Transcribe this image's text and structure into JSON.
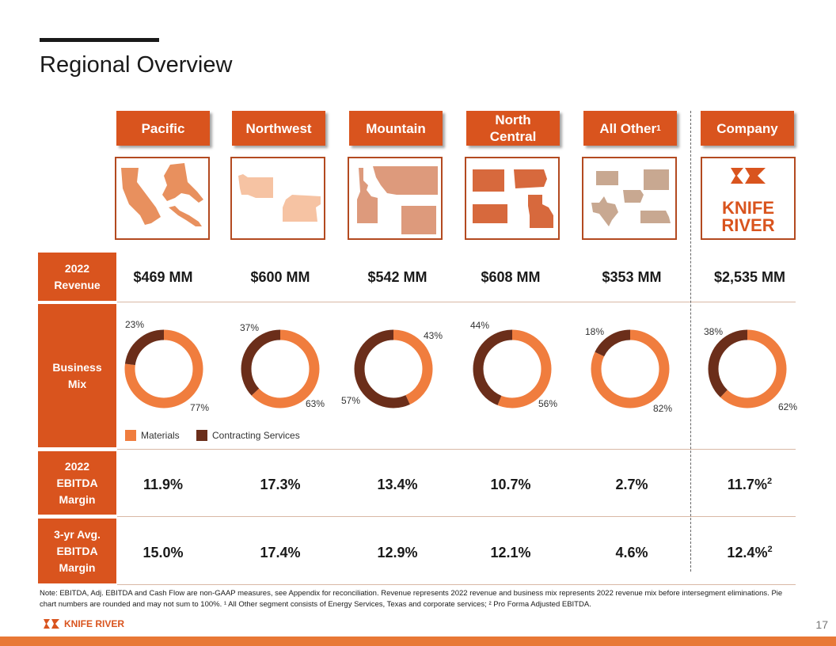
{
  "page": {
    "title": "Regional Overview",
    "page_number": "17"
  },
  "colors": {
    "header_orange": "#d9541e",
    "materials": "#f07d3e",
    "contracting_services": "#6b2e1a"
  },
  "segments": [
    {
      "name": "Pacific",
      "sup": "",
      "revenue": "$469 MM",
      "ebitda_margin": "11.9%",
      "ebitda_sup": "",
      "avg_margin": "15.0%",
      "avg_sup": "",
      "map_color": "#e8905e"
    },
    {
      "name": "Northwest",
      "sup": "",
      "revenue": "$600 MM",
      "ebitda_margin": "17.3%",
      "ebitda_sup": "",
      "avg_margin": "17.4%",
      "avg_sup": "",
      "map_color": "#f6c3a3"
    },
    {
      "name": "Mountain",
      "sup": "",
      "revenue": "$542 MM",
      "ebitda_margin": "13.4%",
      "ebitda_sup": "",
      "avg_margin": "12.9%",
      "avg_sup": "",
      "map_color": "#dd9a7c"
    },
    {
      "name": "North Central",
      "sup": "",
      "revenue": "$608 MM",
      "ebitda_margin": "10.7%",
      "ebitda_sup": "",
      "avg_margin": "12.1%",
      "avg_sup": "",
      "map_color": "#d7693d"
    },
    {
      "name": "All Other",
      "sup": "1",
      "revenue": "$353 MM",
      "ebitda_margin": "2.7%",
      "ebitda_sup": "",
      "avg_margin": "4.6%",
      "avg_sup": "",
      "map_color": "#c8a891"
    },
    {
      "name": "Company",
      "sup": "",
      "revenue": "$2,535 MM",
      "ebitda_margin": "11.7%",
      "ebitda_sup": "2",
      "avg_margin": "12.4%",
      "avg_sup": "2",
      "map_color": ""
    }
  ],
  "row_labels": {
    "revenue": "2022 Revenue",
    "business_mix": "Business Mix",
    "ebitda": "2022 EBITDA Margin",
    "avg_ebitda": "3-yr Avg. EBITDA Margin"
  },
  "chart_data": {
    "type": "pie",
    "variant": "donut",
    "categories": [
      "Pacific",
      "Northwest",
      "Mountain",
      "North Central",
      "All Other",
      "Company"
    ],
    "series": [
      {
        "name": "Materials",
        "values": [
          77,
          63,
          43,
          56,
          82,
          62
        ]
      },
      {
        "name": "Contracting Services",
        "values": [
          23,
          37,
          57,
          44,
          18,
          38
        ]
      }
    ],
    "value_labels": [
      [
        "77%",
        "23%"
      ],
      [
        "63%",
        "37%"
      ],
      [
        "43%",
        "57%"
      ],
      [
        "56%",
        "44%"
      ],
      [
        "82%",
        "18%"
      ],
      [
        "62%",
        "38%"
      ]
    ],
    "legend": [
      "Materials",
      "Contracting Services"
    ],
    "legend_placement": "bottom-left",
    "unit": "%"
  },
  "legend": {
    "materials": "Materials",
    "contracting": "Contracting Services"
  },
  "logo": {
    "text_line1": "KNIFE",
    "text_line2": "RIVER",
    "footer_text": "KNIFE RIVER"
  },
  "note": "Note: EBITDA, Adj. EBITDA and Cash Flow are non-GAAP measures, see Appendix for reconciliation. Revenue represents 2022 revenue and business mix represents 2022 revenue mix before intersegment eliminations. Pie chart numbers are rounded and may not sum to 100%. ¹ All Other segment consists of Energy Services, Texas and corporate services; ² Pro Forma Adjusted EBITDA."
}
